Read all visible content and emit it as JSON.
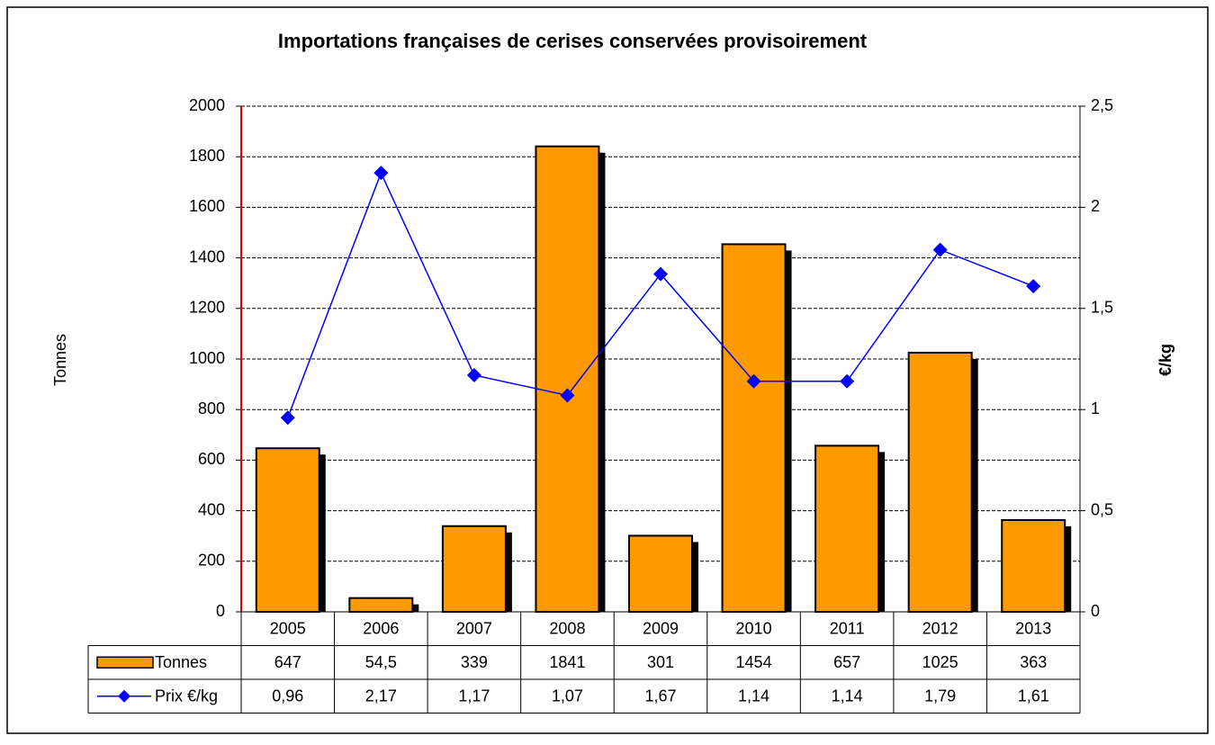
{
  "chart_data": {
    "type": "bar",
    "title": "Importations françaises de cerises conservées provisoirement",
    "y_label": "Tonnes",
    "y2_label": "€/kg",
    "categories": [
      "2005",
      "2006",
      "2007",
      "2008",
      "2009",
      "2010",
      "2011",
      "2012",
      "2013"
    ],
    "series": [
      {
        "name": "Tonnes",
        "type": "bar",
        "color": "#ff9900",
        "values": [
          647,
          54.5,
          339,
          1841,
          301,
          1454,
          657,
          1025,
          363
        ],
        "value_labels": [
          "647",
          "54,5",
          "339",
          "1841",
          "301",
          "1454",
          "657",
          "1025",
          "363"
        ]
      },
      {
        "name": "Prix €/kg",
        "type": "line",
        "color": "#0000ff",
        "axis": "y2",
        "values": [
          0.96,
          2.17,
          1.17,
          1.07,
          1.67,
          1.14,
          1.14,
          1.79,
          1.61
        ],
        "value_labels": [
          "0,96",
          "2,17",
          "1,17",
          "1,07",
          "1,67",
          "1,14",
          "1,14",
          "1,79",
          "1,61"
        ]
      }
    ],
    "ylim": [
      0,
      2000
    ],
    "yticks": [
      0,
      200,
      400,
      600,
      800,
      1000,
      1200,
      1400,
      1600,
      1800,
      2000
    ],
    "y2lim": [
      0,
      2.5
    ],
    "y2ticks": [
      0,
      {
        "value": 0.5,
        "label": "0,5"
      },
      1,
      {
        "value": 1.5,
        "label": "1,5"
      },
      2,
      {
        "value": 2.5,
        "label": "2,5"
      }
    ],
    "grid": true
  }
}
